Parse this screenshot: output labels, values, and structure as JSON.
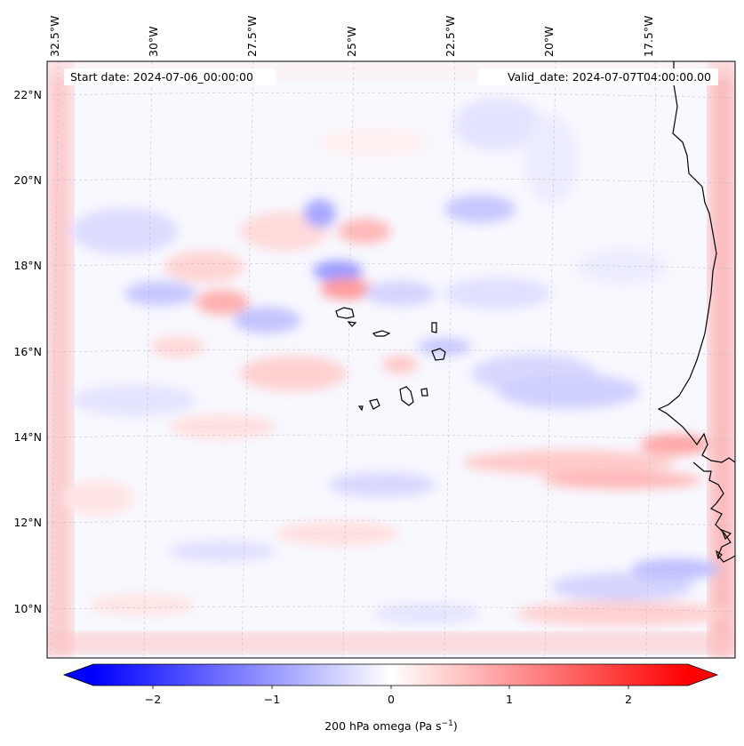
{
  "map": {
    "start_date": "Start date: 2024-07-06_00:00:00",
    "valid_date": "Valid_date: 2024-07-07T04:00:00.00",
    "lon_labels": [
      "32.5°W",
      "30°W",
      "27.5°W",
      "25°W",
      "22.5°W",
      "20°W",
      "17.5°W"
    ],
    "lat_labels": [
      "22°N",
      "20°N",
      "18°N",
      "16°N",
      "14°N",
      "12°N",
      "10°N"
    ],
    "field": "200 hPa omega",
    "colormap": "bwr",
    "gridlines": true,
    "coastlines": true,
    "features": [
      "Cape Verde Islands",
      "West African coast"
    ]
  },
  "colorbar": {
    "label_main": "200 hPa omega (Pa s",
    "label_exp": "−1",
    "label_close": ")",
    "ticks": [
      "−2",
      "−1",
      "0",
      "1",
      "2"
    ],
    "tick_values": [
      -2,
      -1,
      0,
      1,
      2
    ],
    "range": [
      -2.5,
      2.5
    ],
    "extend": "both",
    "colors": {
      "min": "#0000ff",
      "mid": "#ffffff",
      "max": "#ff0000"
    }
  }
}
